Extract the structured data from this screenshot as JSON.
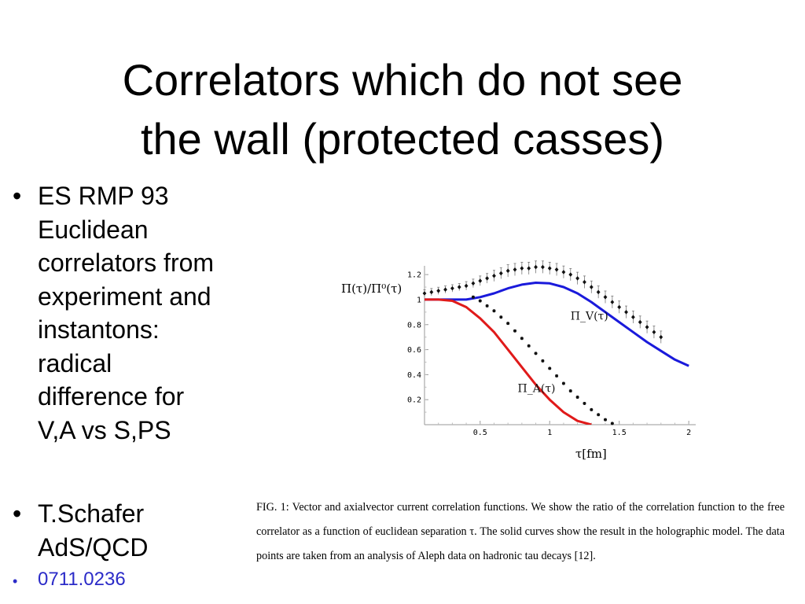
{
  "title": {
    "line1": "Correlators which do not see",
    "line2": "the wall (protected casses)"
  },
  "bullets": [
    {
      "dot": "•",
      "lines": [
        "ES RMP 93",
        "Euclidean",
        "correlators from",
        "experiment and",
        "instantons:",
        "radical",
        "difference for",
        "V,A vs S,PS"
      ]
    },
    {
      "dot": "•",
      "lines": [
        "T.Schafer",
        "AdS/QCD"
      ]
    },
    {
      "dot": "•",
      "lines": [
        "0711.0236"
      ]
    }
  ],
  "chart_data": {
    "type": "line",
    "ylabel": "Π(τ)/Π⁰(τ)",
    "xlabel": "τ[fm]",
    "xlim": [
      0.1,
      2.05
    ],
    "ylim": [
      0.0,
      1.27
    ],
    "x_ticks": [
      {
        "v": 0.5,
        "label": "0.5"
      },
      {
        "v": 1,
        "label": "1"
      },
      {
        "v": 1.5,
        "label": "1.5"
      },
      {
        "v": 2,
        "label": "2"
      }
    ],
    "y_ticks": [
      {
        "v": 0.2,
        "label": "0.2"
      },
      {
        "v": 0.4,
        "label": "0.4"
      },
      {
        "v": 0.6,
        "label": "0.6"
      },
      {
        "v": 0.8,
        "label": "0.8"
      },
      {
        "v": 1.0,
        "label": "1"
      },
      {
        "v": 1.2,
        "label": "1.2"
      }
    ],
    "series": [
      {
        "name": "Π_V(τ)",
        "label_x": 1.15,
        "label_y": 0.84,
        "color": "#1a1adb",
        "x": [
          0.1,
          0.2,
          0.3,
          0.4,
          0.5,
          0.6,
          0.7,
          0.8,
          0.9,
          1.0,
          1.1,
          1.2,
          1.3,
          1.4,
          1.5,
          1.6,
          1.7,
          1.8,
          1.9,
          2.0
        ],
        "y": [
          1.0,
          1.0,
          1.0,
          1.0,
          1.02,
          1.05,
          1.09,
          1.12,
          1.135,
          1.13,
          1.1,
          1.05,
          0.98,
          0.9,
          0.82,
          0.74,
          0.66,
          0.59,
          0.52,
          0.47
        ]
      },
      {
        "name": "Π_A(τ)",
        "label_x": 0.77,
        "label_y": 0.26,
        "color": "#e01a1a",
        "x": [
          0.1,
          0.2,
          0.3,
          0.4,
          0.5,
          0.6,
          0.7,
          0.8,
          0.9,
          1.0,
          1.1,
          1.2,
          1.3
        ],
        "y": [
          1.0,
          1.0,
          0.99,
          0.94,
          0.85,
          0.74,
          0.6,
          0.46,
          0.32,
          0.2,
          0.1,
          0.03,
          0.0
        ]
      },
      {
        "name": "",
        "marker": "diamond-errorbar",
        "color": "#111111",
        "x": [
          0.1,
          0.15,
          0.2,
          0.25,
          0.3,
          0.35,
          0.4,
          0.45,
          0.5,
          0.55,
          0.6,
          0.65,
          0.7,
          0.75,
          0.8,
          0.85,
          0.9,
          0.95,
          1.0,
          1.05,
          1.1,
          1.15,
          1.2,
          1.25,
          1.3,
          1.35,
          1.4,
          1.45,
          1.5,
          1.55,
          1.6,
          1.65,
          1.7,
          1.75,
          1.8
        ],
        "y": [
          1.05,
          1.06,
          1.07,
          1.08,
          1.09,
          1.1,
          1.11,
          1.13,
          1.15,
          1.17,
          1.19,
          1.21,
          1.23,
          1.24,
          1.25,
          1.25,
          1.26,
          1.26,
          1.25,
          1.24,
          1.22,
          1.2,
          1.17,
          1.14,
          1.1,
          1.06,
          1.02,
          0.98,
          0.94,
          0.9,
          0.86,
          0.82,
          0.78,
          0.74,
          0.7
        ],
        "err": [
          0.01,
          0.01,
          0.01,
          0.01,
          0.01,
          0.01,
          0.015,
          0.015,
          0.02,
          0.02,
          0.025,
          0.025,
          0.03,
          0.03,
          0.03,
          0.03,
          0.03,
          0.03,
          0.03,
          0.03,
          0.03,
          0.03,
          0.03,
          0.03,
          0.03,
          0.03,
          0.03,
          0.03,
          0.03,
          0.03,
          0.03,
          0.03,
          0.03,
          0.03,
          0.03
        ]
      },
      {
        "name": "",
        "marker": "star",
        "color": "#111111",
        "x": [
          0.45,
          0.5,
          0.55,
          0.6,
          0.65,
          0.7,
          0.75,
          0.8,
          0.85,
          0.9,
          0.95,
          1.0,
          1.05,
          1.1,
          1.15,
          1.2,
          1.25,
          1.3,
          1.35,
          1.4,
          1.45
        ],
        "y": [
          1.02,
          0.99,
          0.95,
          0.91,
          0.86,
          0.81,
          0.75,
          0.69,
          0.63,
          0.57,
          0.51,
          0.45,
          0.39,
          0.33,
          0.27,
          0.22,
          0.17,
          0.12,
          0.08,
          0.04,
          0.01
        ]
      }
    ]
  },
  "caption": {
    "text": "FIG. 1: Vector and axialvector current correlation functions. We show the ratio of the correlation function to the free correlator as a function of euclidean separation τ. The solid curves show the result in the holographic model. The data points are taken from an analysis of Aleph data on hadronic tau decays [12]."
  }
}
